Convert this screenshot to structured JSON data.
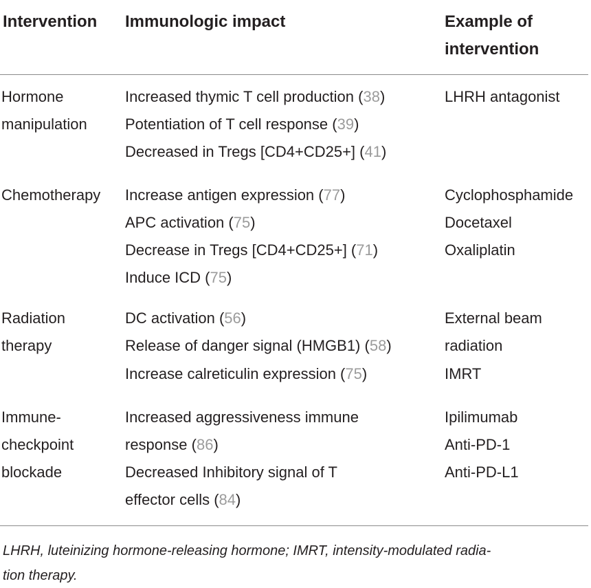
{
  "headers": {
    "intervention": "Intervention",
    "impact": "Immunologic impact",
    "example_line1": "Example of",
    "example_line2": "intervention"
  },
  "rows": [
    {
      "intervention": [
        "Hormone",
        "manipulation"
      ],
      "impacts": [
        {
          "text": "Increased thymic T cell production (",
          "ref": "38",
          "close": ")"
        },
        {
          "text": "Potentiation of T cell response (",
          "ref": "39",
          "close": ")"
        },
        {
          "text": "Decreased in Tregs [CD4+CD25+] (",
          "ref": "41",
          "close": ")"
        }
      ],
      "examples": [
        "LHRH antagonist"
      ]
    },
    {
      "intervention": [
        "Chemotherapy"
      ],
      "impacts": [
        {
          "text": "Increase antigen expression (",
          "ref": "77",
          "close": ")"
        },
        {
          "text": "APC activation (",
          "ref": "75",
          "close": ")"
        },
        {
          "text": "Decrease in Tregs [CD4+CD25+] (",
          "ref": "71",
          "close": ")"
        },
        {
          "text": "Induce ICD (",
          "ref": "75",
          "close": ")"
        }
      ],
      "examples": [
        "Cyclophosphamide",
        "Docetaxel",
        "Oxaliplatin"
      ]
    },
    {
      "intervention": [
        "Radiation",
        "therapy"
      ],
      "impacts": [
        {
          "text": "DC activation (",
          "ref": "56",
          "close": ")"
        },
        {
          "text": "Release of danger signal (HMGB1) (",
          "ref": "58",
          "close": ")"
        },
        {
          "text": "Increase calreticulin expression (",
          "ref": "75",
          "close": ")"
        }
      ],
      "examples": [
        "External beam",
        "radiation",
        "IMRT"
      ]
    },
    {
      "intervention": [
        "Immune-",
        "checkpoint",
        "blockade"
      ],
      "impacts": [
        {
          "text": "Increased aggressiveness immune",
          "ref": "",
          "close": ""
        },
        {
          "text": "response (",
          "ref": "86",
          "close": ")"
        },
        {
          "text": "Decreased Inhibitory signal of T",
          "ref": "",
          "close": ""
        },
        {
          "text": "effector cells (",
          "ref": "84",
          "close": ")"
        }
      ],
      "examples": [
        "Ipilimumab",
        "Anti-PD-1",
        "Anti-PD-L1"
      ]
    }
  ],
  "footnote": {
    "line1": "LHRH, luteinizing hormone-releasing hormone; IMRT, intensity-modulated radia-",
    "line2": "tion therapy."
  }
}
